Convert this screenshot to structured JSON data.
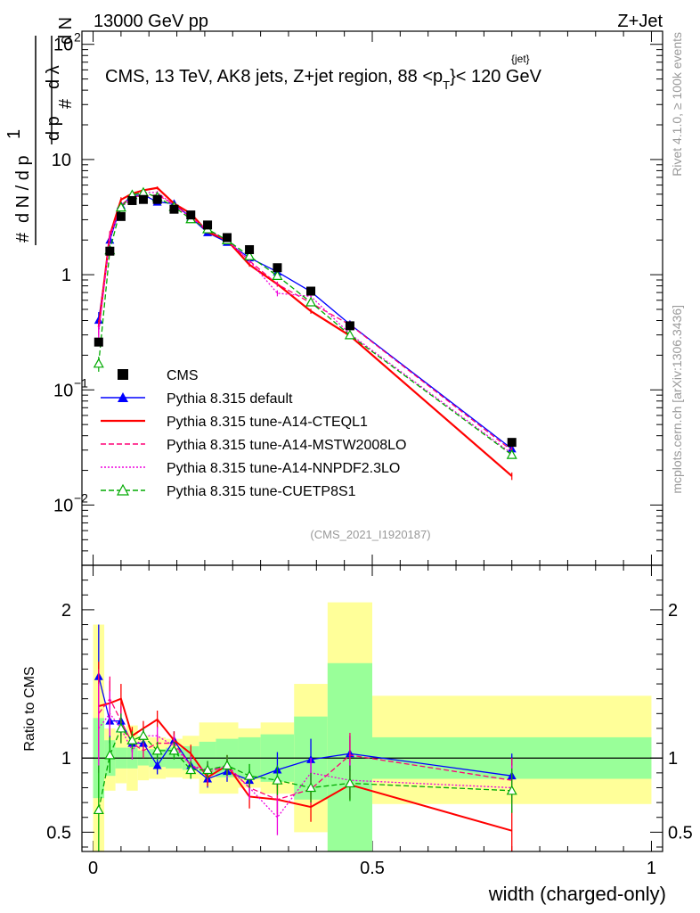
{
  "header": {
    "left": "13000 GeV pp",
    "right": "Z+Jet",
    "side_top": "Rivet 4.1.0, ≥ 100k events",
    "side_bottom": "mcplots.cern.ch [arXiv:1306.3436]"
  },
  "chart_data": {
    "type": "line",
    "title": "CMS, 13 TeV, AK8 jets, Z+jet region, 88 <p",
    "title_sup": "{jet}",
    "title_sub": "T",
    "title_tail": "}< 120 GeV",
    "analysis_id": "(CMS_2021_I1920187)",
    "xlabel": "width (charged-only)",
    "ylabel": "1/N dN/dλ",
    "ratio_ylabel": "Ratio to CMS",
    "xlim": [
      -0.02,
      1.02
    ],
    "ylim": [
      0.003,
      130
    ],
    "ratio_ylim": [
      0.37,
      2.3
    ],
    "x_ticks": [
      {
        "v": 0,
        "label": "0"
      },
      {
        "v": 0.5,
        "label": "0.5"
      },
      {
        "v": 1,
        "label": "1"
      }
    ],
    "y_ticks": [
      {
        "v": 0.01,
        "label": "10",
        "sup": "−2"
      },
      {
        "v": 0.1,
        "label": "10",
        "sup": "−1"
      },
      {
        "v": 1,
        "label": "1",
        "sup": ""
      },
      {
        "v": 10,
        "label": "10",
        "sup": ""
      },
      {
        "v": 100,
        "label": "10",
        "sup": "2"
      }
    ],
    "ratio_ticks": [
      {
        "v": 0.5,
        "label": "0.5"
      },
      {
        "v": 1,
        "label": "1"
      },
      {
        "v": 2,
        "label": "2"
      }
    ],
    "bins": [
      0,
      0.02,
      0.04,
      0.06,
      0.08,
      0.1,
      0.13,
      0.16,
      0.19,
      0.22,
      0.26,
      0.3,
      0.36,
      0.42,
      0.5,
      1.0
    ],
    "x": [
      0.01,
      0.03,
      0.05,
      0.07,
      0.09,
      0.115,
      0.145,
      0.175,
      0.205,
      0.24,
      0.28,
      0.33,
      0.39,
      0.46,
      0.75
    ],
    "data": [
      0.26,
      1.6,
      3.2,
      4.4,
      4.5,
      4.5,
      3.7,
      3.3,
      2.7,
      2.1,
      1.65,
      1.15,
      0.72,
      0.36,
      0.035
    ],
    "band_stat_lo": [
      0.73,
      0.88,
      0.93,
      0.93,
      0.95,
      0.94,
      0.93,
      0.92,
      0.89,
      0.87,
      0.86,
      0.84,
      0.72,
      0.36,
      0.86
    ],
    "band_stat_hi": [
      1.27,
      1.12,
      1.07,
      1.07,
      1.05,
      1.06,
      1.07,
      1.08,
      1.11,
      1.13,
      1.14,
      1.16,
      1.28,
      1.64,
      1.14
    ],
    "band_tot_lo": [
      0.1,
      0.78,
      0.83,
      0.78,
      0.85,
      0.86,
      0.87,
      0.86,
      0.76,
      0.76,
      0.8,
      0.76,
      0.5,
      0.1,
      0.69
    ],
    "band_tot_hi": [
      1.9,
      1.2,
      1.17,
      1.22,
      1.15,
      1.14,
      1.13,
      1.15,
      1.24,
      1.24,
      1.2,
      1.24,
      1.5,
      2.05,
      1.42
    ],
    "series": [
      {
        "name": "Pythia 8.315 default",
        "color": "#0000ff",
        "style": "solid",
        "marker": "triangle-filled",
        "ratio": [
          1.55,
          1.25,
          1.25,
          1.1,
          1.1,
          0.95,
          1.12,
          0.95,
          0.86,
          0.91,
          0.85,
          0.92,
          0.99,
          1.03,
          0.88
        ],
        "err": [
          0.35,
          0.15,
          0.1,
          0.06,
          0.05,
          0.06,
          0.06,
          0.06,
          0.06,
          0.07,
          0.07,
          0.12,
          0.14,
          0.12,
          0.15
        ]
      },
      {
        "name": "Pythia 8.315 tune-A14-CTEQL1",
        "color": "#ff0000",
        "style": "solid",
        "marker": "none",
        "ratio": [
          1.35,
          1.37,
          1.4,
          1.15,
          1.2,
          1.26,
          1.12,
          1.03,
          0.87,
          0.95,
          0.74,
          0.72,
          0.67,
          0.82,
          0.51
        ],
        "err": [
          0.3,
          0.15,
          0.1,
          0.06,
          0.05,
          0.06,
          0.06,
          0.06,
          0.06,
          0.07,
          0.08,
          0.1,
          0.1,
          0.1,
          0.15
        ]
      },
      {
        "name": "Pythia 8.315 tune-A14-MSTW2008LO",
        "color": "#ff0077",
        "style": "dashed",
        "marker": "none",
        "ratio": [
          1.3,
          1.4,
          1.25,
          1.1,
          1.05,
          1.1,
          1.1,
          0.95,
          0.9,
          0.95,
          0.8,
          0.72,
          0.79,
          1.02,
          0.85
        ],
        "err": [
          0.3,
          0.15,
          0.1,
          0.06,
          0.05,
          0.06,
          0.06,
          0.06,
          0.06,
          0.07,
          0.08,
          0.1,
          0.1,
          0.15,
          0.15
        ]
      },
      {
        "name": "Pythia 8.315 tune-A14-NNPDF2.3LO",
        "color": "#ee00dd",
        "style": "dotted",
        "marker": "none",
        "ratio": [
          1.2,
          1.3,
          1.2,
          1.05,
          1.15,
          1.15,
          1.08,
          0.95,
          0.92,
          0.94,
          0.8,
          0.6,
          0.9,
          0.85,
          0.8
        ],
        "err": [
          0.3,
          0.15,
          0.1,
          0.06,
          0.05,
          0.06,
          0.06,
          0.06,
          0.06,
          0.07,
          0.08,
          0.12,
          0.1,
          0.12,
          0.15
        ]
      },
      {
        "name": "Pythia 8.315 tune-CUETP8S1",
        "color": "#00aa00",
        "style": "dashed",
        "marker": "triangle-open",
        "ratio": [
          0.65,
          1.02,
          1.2,
          1.12,
          1.15,
          1.05,
          1.05,
          0.92,
          0.92,
          0.95,
          0.88,
          0.85,
          0.8,
          0.83,
          0.78
        ],
        "err": [
          0.3,
          0.12,
          0.1,
          0.06,
          0.05,
          0.06,
          0.06,
          0.06,
          0.06,
          0.07,
          0.08,
          0.1,
          0.1,
          0.12,
          0.15
        ]
      }
    ],
    "legend": [
      "CMS",
      "Pythia 8.315 default",
      "Pythia 8.315 tune-A14-CTEQL1",
      "Pythia 8.315 tune-A14-MSTW2008LO",
      "Pythia 8.315 tune-A14-NNPDF2.3LO",
      "Pythia 8.315 tune-CUETP8S1"
    ],
    "legend_position": "bottom-left"
  }
}
